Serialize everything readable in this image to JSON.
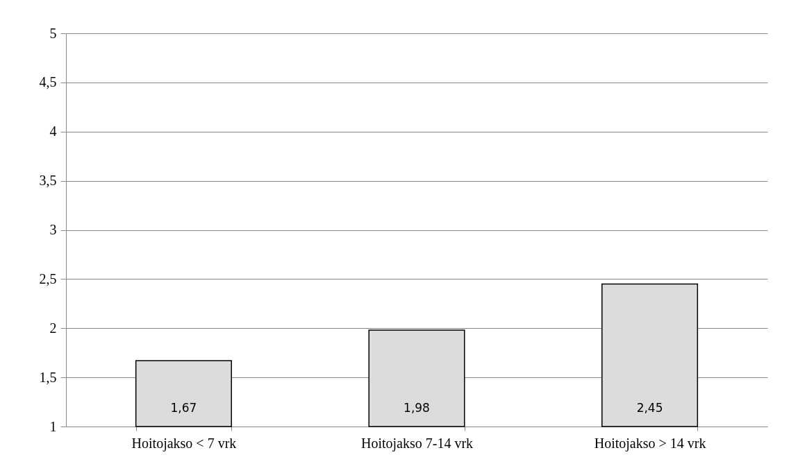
{
  "chart_data": {
    "type": "bar",
    "categories": [
      "Hoitojakso < 7 vrk",
      "Hoitojakso 7-14 vrk",
      "Hoitojakso > 14 vrk"
    ],
    "values": [
      1.67,
      1.98,
      2.45
    ],
    "value_labels": [
      "1,67",
      "1,98",
      "2,45"
    ],
    "color": "#dcdcdc",
    "ylim": [
      1,
      5
    ],
    "yticks": [
      1,
      {
        "value": 1.5,
        "label": "1,5"
      },
      2,
      {
        "value": 2.5,
        "label": "2,5"
      },
      3,
      {
        "value": 3.5,
        "label": "3,5"
      },
      4,
      {
        "value": 4.5,
        "label": "4,5"
      },
      5
    ],
    "grid": "y"
  }
}
